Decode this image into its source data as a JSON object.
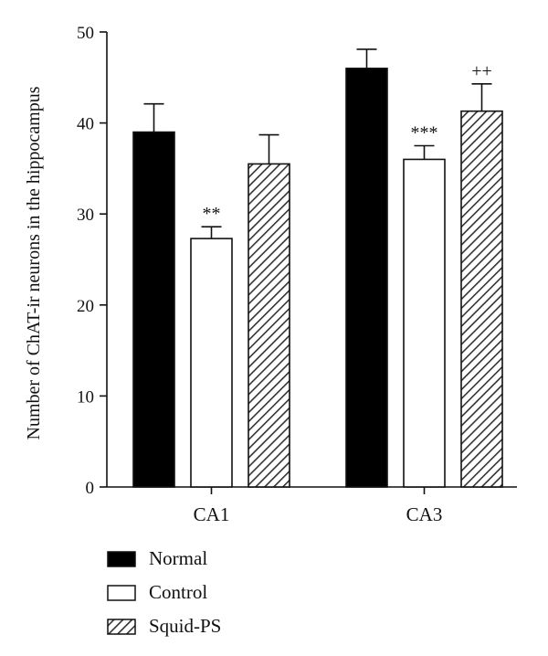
{
  "chart_data": {
    "type": "bar",
    "ylabel": "Number of ChAT-ir neurons in the hippocampus",
    "xlabel": "",
    "ylim": [
      0,
      50
    ],
    "yticks": [
      0,
      10,
      20,
      30,
      40,
      50
    ],
    "categories": [
      "CA1",
      "CA3"
    ],
    "series": [
      {
        "name": "Normal",
        "values": [
          39.0,
          46.0
        ],
        "errors": [
          3.1,
          2.1
        ],
        "fill": "solid",
        "color": "#000000"
      },
      {
        "name": "Control",
        "values": [
          27.3,
          36.0
        ],
        "errors": [
          1.3,
          1.5
        ],
        "fill": "open",
        "color": "#ffffff"
      },
      {
        "name": "Squid-PS",
        "values": [
          35.5,
          41.3
        ],
        "errors": [
          3.2,
          3.0
        ],
        "fill": "hatched",
        "color": "#5a5a5a"
      }
    ],
    "annotations": [
      {
        "category": "CA1",
        "series": "Control",
        "text": "**"
      },
      {
        "category": "CA3",
        "series": "Control",
        "text": "***"
      },
      {
        "category": "CA3",
        "series": "Squid-PS",
        "text": "++"
      }
    ],
    "legend_position": "bottom-left",
    "grid": false
  }
}
